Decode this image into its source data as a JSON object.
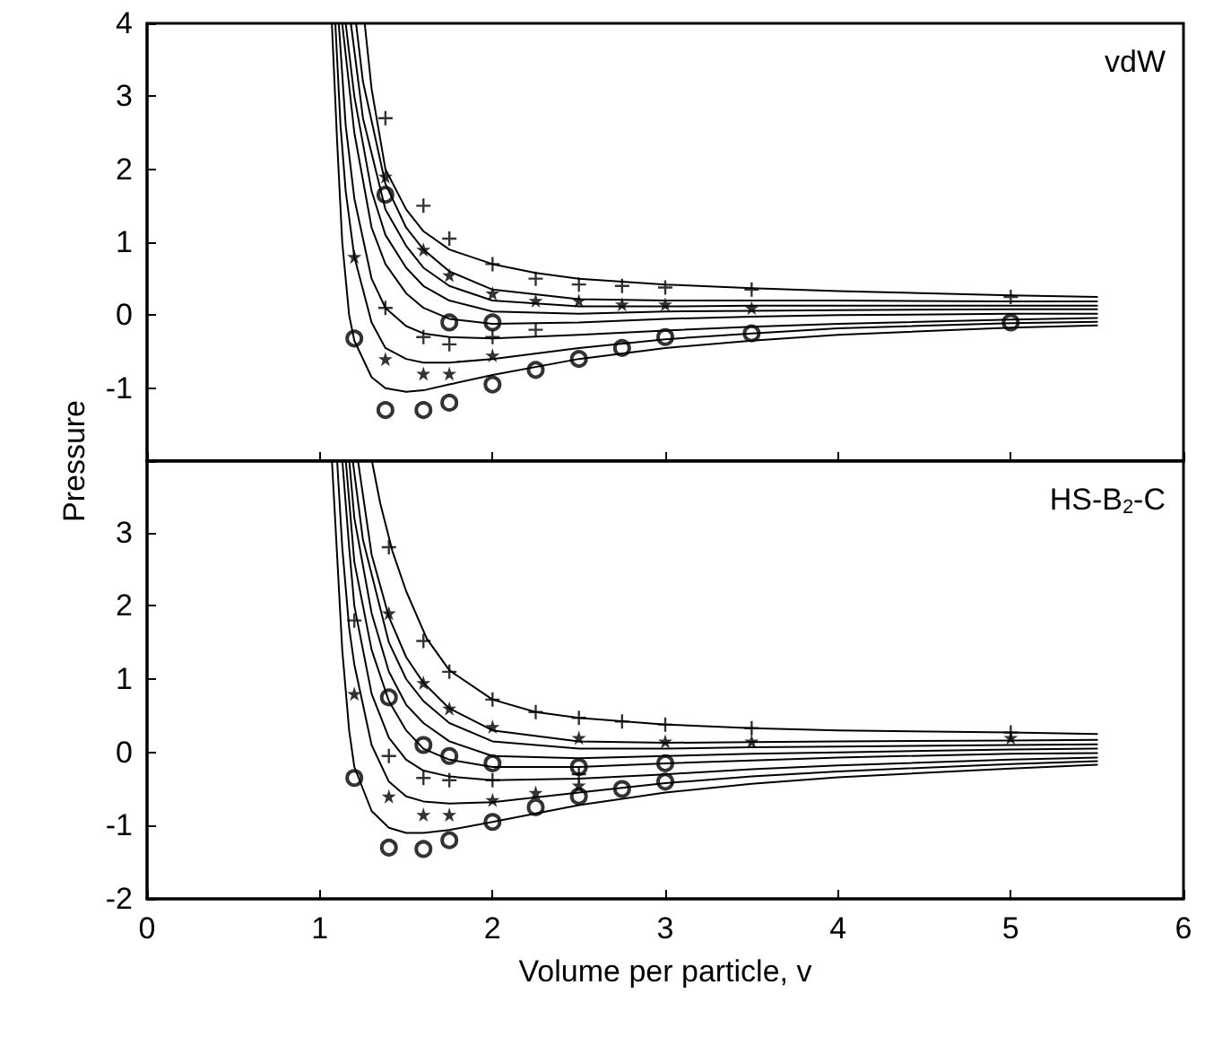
{
  "chart_data": [
    {
      "type": "line",
      "ylabel": "Pressure",
      "annotations": [
        "vdW"
      ],
      "xlim": [
        0,
        6
      ],
      "xticks": [
        0,
        1,
        2,
        3,
        4,
        5,
        6
      ],
      "ylim": [
        -2,
        4
      ],
      "yticks": [
        {
          "value": -2,
          "label": null
        },
        -1,
        0,
        1,
        2,
        3,
        4
      ],
      "tick_labels": "y",
      "grid": false,
      "line_style": "solid",
      "series": [
        {
          "color": "#000000",
          "marker": "none",
          "x": [
            1.26,
            1.3,
            1.38,
            1.5,
            1.6,
            1.75,
            2.0,
            2.25,
            2.5,
            3.0,
            3.5,
            4.0,
            5.0,
            5.5
          ],
          "values": [
            4,
            3.1,
            2.0,
            1.45,
            1.15,
            0.9,
            0.7,
            0.58,
            0.5,
            0.42,
            0.37,
            0.33,
            0.27,
            0.25
          ]
        },
        {
          "color": "#000000",
          "marker": "none",
          "x": [
            1.21,
            1.25,
            1.38,
            1.5,
            1.6,
            1.75,
            2.0,
            2.5,
            3.0,
            3.5,
            4.0,
            5.0,
            5.5
          ],
          "values": [
            4,
            3.2,
            1.8,
            1.2,
            0.9,
            0.6,
            0.35,
            0.22,
            0.2,
            0.2,
            0.2,
            0.19,
            0.19
          ]
        },
        {
          "color": "#000000",
          "marker": "none",
          "x": [
            1.18,
            1.25,
            1.38,
            1.5,
            1.6,
            1.75,
            2.0,
            2.5,
            3.0,
            3.5,
            4.0,
            5.0,
            5.5
          ],
          "values": [
            4,
            2.7,
            1.45,
            0.95,
            0.65,
            0.4,
            0.2,
            0.12,
            0.12,
            0.13,
            0.13,
            0.13,
            0.13
          ]
        },
        {
          "color": "#000000",
          "marker": "none",
          "x": [
            1.15,
            1.2,
            1.3,
            1.38,
            1.5,
            1.6,
            1.75,
            2.0,
            2.5,
            3.0,
            3.5,
            4.0,
            5.0,
            5.5
          ],
          "values": [
            4,
            3.0,
            1.7,
            1.1,
            0.65,
            0.4,
            0.2,
            0.05,
            0.02,
            0.05,
            0.06,
            0.07,
            0.08,
            0.08
          ]
        },
        {
          "color": "#000000",
          "marker": "none",
          "x": [
            1.13,
            1.2,
            1.3,
            1.38,
            1.5,
            1.6,
            1.75,
            2.0,
            2.5,
            3.0,
            3.5,
            4.0,
            5.0,
            5.5
          ],
          "values": [
            4,
            2.5,
            1.2,
            0.7,
            0.3,
            0.1,
            -0.05,
            -0.12,
            -0.1,
            -0.05,
            -0.02,
            0,
            0.02,
            0.02
          ]
        },
        {
          "color": "#000000",
          "marker": "none",
          "x": [
            1.11,
            1.15,
            1.2,
            1.3,
            1.38,
            1.5,
            1.6,
            1.75,
            2.0,
            2.5,
            3.0,
            3.5,
            4.0,
            5.0,
            5.5
          ],
          "values": [
            4,
            2.6,
            1.6,
            0.5,
            0.1,
            -0.15,
            -0.25,
            -0.3,
            -0.32,
            -0.27,
            -0.21,
            -0.16,
            -0.12,
            -0.06,
            -0.04
          ]
        },
        {
          "color": "#000000",
          "marker": "none",
          "x": [
            1.09,
            1.12,
            1.15,
            1.2,
            1.3,
            1.38,
            1.5,
            1.6,
            1.75,
            2.0,
            2.5,
            3.0,
            3.5,
            4.0,
            5.0,
            5.5
          ],
          "values": [
            4,
            2.6,
            1.7,
            0.8,
            -0.1,
            -0.45,
            -0.6,
            -0.65,
            -0.65,
            -0.6,
            -0.45,
            -0.33,
            -0.25,
            -0.18,
            -0.11,
            -0.09
          ]
        },
        {
          "color": "#000000",
          "marker": "none",
          "x": [
            1.07,
            1.1,
            1.13,
            1.17,
            1.2,
            1.3,
            1.38,
            1.5,
            1.6,
            1.75,
            2.0,
            2.5,
            3.0,
            3.5,
            4.0,
            5.0,
            5.5
          ],
          "values": [
            4,
            2.4,
            1.0,
            0,
            -0.35,
            -0.85,
            -1.0,
            -1.05,
            -1.03,
            -0.95,
            -0.82,
            -0.6,
            -0.45,
            -0.35,
            -0.27,
            -0.17,
            -0.14
          ]
        },
        {
          "type": "scatter",
          "color": "#000000",
          "marker": "circle",
          "x": [
            1.2,
            1.38,
            1.6,
            1.75,
            2.0,
            2.25,
            2.5,
            2.75,
            3.0,
            3.5,
            5.0,
            1.38,
            1.75,
            2.0
          ],
          "values": [
            -0.32,
            -1.3,
            -1.3,
            -1.2,
            -0.95,
            -0.75,
            -0.6,
            -0.45,
            -0.3,
            -0.25,
            -0.1,
            1.65,
            -0.1,
            -0.1
          ]
        },
        {
          "type": "scatter",
          "color": "#000000",
          "marker": "star",
          "x": [
            1.2,
            1.38,
            1.6,
            1.75,
            2.0,
            1.38,
            1.6,
            1.75,
            2.0,
            2.25,
            2.5,
            2.75,
            3.0,
            3.5
          ],
          "values": [
            0.8,
            -0.6,
            -0.8,
            -0.8,
            -0.55,
            1.9,
            0.9,
            0.55,
            0.3,
            0.2,
            0.2,
            0.15,
            0.15,
            0.1
          ]
        },
        {
          "type": "scatter",
          "color": "#000000",
          "marker": "cross",
          "x": [
            1.38,
            1.6,
            1.75,
            2.0,
            2.25,
            2.5,
            2.75,
            3.0,
            3.5,
            5.0,
            1.38,
            1.6,
            1.75,
            2.0,
            2.25
          ],
          "values": [
            2.7,
            1.5,
            1.05,
            0.7,
            0.5,
            0.42,
            0.4,
            0.38,
            0.35,
            0.25,
            0.1,
            -0.3,
            -0.4,
            -0.3,
            -0.2
          ]
        }
      ]
    },
    {
      "type": "line",
      "xlabel": "Volume per particle, v",
      "annotations": [
        "HS-B$_{2}$-C"
      ],
      "xlim": [
        0,
        6
      ],
      "xticks": [
        0,
        1,
        2,
        3,
        4,
        5,
        6
      ],
      "ylim": [
        -2,
        4
      ],
      "yticks": [
        -2,
        -1,
        0,
        1,
        2,
        3,
        {
          "value": 4,
          "label": null
        }
      ],
      "grid": false,
      "line_style": "solid",
      "series": [
        {
          "color": "#000000",
          "marker": "none",
          "x": [
            1.3,
            1.35,
            1.42,
            1.5,
            1.62,
            1.75,
            2.0,
            2.25,
            2.5,
            3.0,
            3.5,
            4.0,
            5.0,
            5.5
          ],
          "values": [
            4,
            3.4,
            2.75,
            2.2,
            1.55,
            1.12,
            0.72,
            0.55,
            0.47,
            0.38,
            0.33,
            0.3,
            0.27,
            0.25
          ]
        },
        {
          "color": "#000000",
          "marker": "none",
          "x": [
            1.22,
            1.3,
            1.4,
            1.5,
            1.6,
            1.75,
            2.0,
            2.5,
            3.0,
            3.5,
            4.0,
            5.0,
            5.5
          ],
          "values": [
            4,
            2.7,
            1.85,
            1.3,
            0.95,
            0.6,
            0.3,
            0.15,
            0.13,
            0.14,
            0.15,
            0.16,
            0.17
          ]
        },
        {
          "color": "#000000",
          "marker": "none",
          "x": [
            1.19,
            1.25,
            1.4,
            1.5,
            1.6,
            1.75,
            2.0,
            2.5,
            3.0,
            3.5,
            4.0,
            5.0,
            5.5
          ],
          "values": [
            4,
            2.9,
            1.5,
            1.0,
            0.7,
            0.4,
            0.15,
            0.05,
            0.05,
            0.07,
            0.08,
            0.1,
            0.11
          ]
        },
        {
          "color": "#000000",
          "marker": "none",
          "x": [
            1.17,
            1.2,
            1.3,
            1.4,
            1.5,
            1.6,
            1.75,
            2.0,
            2.5,
            3.0,
            3.5,
            4.0,
            5.0,
            5.5
          ],
          "values": [
            4,
            3.2,
            1.9,
            1.1,
            0.65,
            0.4,
            0.15,
            -0.05,
            -0.08,
            -0.05,
            -0.02,
            0,
            0.04,
            0.05
          ]
        },
        {
          "color": "#000000",
          "marker": "none",
          "x": [
            1.15,
            1.2,
            1.3,
            1.4,
            1.5,
            1.6,
            1.75,
            2.0,
            2.5,
            3.0,
            3.5,
            4.0,
            5.0,
            5.5
          ],
          "values": [
            4,
            2.6,
            1.4,
            0.7,
            0.3,
            0.05,
            -0.1,
            -0.2,
            -0.2,
            -0.15,
            -0.11,
            -0.07,
            -0.02,
            -0.01
          ]
        },
        {
          "color": "#000000",
          "marker": "none",
          "x": [
            1.13,
            1.17,
            1.2,
            1.3,
            1.4,
            1.5,
            1.6,
            1.75,
            2.0,
            2.5,
            3.0,
            3.5,
            4.0,
            5.0,
            5.5
          ],
          "values": [
            4,
            2.8,
            2.0,
            0.8,
            0.2,
            -0.1,
            -0.25,
            -0.33,
            -0.38,
            -0.36,
            -0.3,
            -0.23,
            -0.18,
            -0.1,
            -0.07
          ]
        },
        {
          "color": "#000000",
          "marker": "none",
          "x": [
            1.1,
            1.13,
            1.17,
            1.2,
            1.3,
            1.4,
            1.5,
            1.6,
            1.75,
            2.0,
            2.5,
            3.0,
            3.5,
            4.0,
            5.0,
            5.5
          ],
          "values": [
            4,
            2.8,
            1.7,
            1.2,
            0.1,
            -0.4,
            -0.6,
            -0.67,
            -0.7,
            -0.68,
            -0.55,
            -0.42,
            -0.33,
            -0.26,
            -0.16,
            -0.12
          ]
        },
        {
          "color": "#000000",
          "marker": "none",
          "x": [
            1.07,
            1.1,
            1.13,
            1.17,
            1.2,
            1.3,
            1.4,
            1.5,
            1.6,
            1.75,
            2.0,
            2.5,
            3.0,
            3.5,
            4.0,
            5.0,
            5.5
          ],
          "values": [
            4,
            2.7,
            1.4,
            0.3,
            -0.2,
            -0.8,
            -1.03,
            -1.1,
            -1.1,
            -1.06,
            -0.95,
            -0.72,
            -0.55,
            -0.43,
            -0.34,
            -0.22,
            -0.17
          ]
        },
        {
          "type": "scatter",
          "color": "#000000",
          "marker": "circle",
          "x": [
            1.2,
            1.4,
            1.6,
            1.75,
            2.0,
            2.25,
            2.5,
            2.75,
            3.0,
            1.4,
            1.6,
            1.75,
            2.0,
            2.5,
            3.0
          ],
          "values": [
            -0.35,
            -1.3,
            -1.32,
            -1.2,
            -0.95,
            -0.75,
            -0.6,
            -0.5,
            -0.4,
            0.75,
            0.1,
            -0.05,
            -0.15,
            -0.2,
            -0.15
          ]
        },
        {
          "type": "scatter",
          "color": "#000000",
          "marker": "star",
          "x": [
            1.2,
            1.4,
            1.6,
            1.75,
            2.0,
            2.25,
            2.5,
            1.4,
            1.6,
            1.75,
            2.0,
            2.5,
            3.0,
            3.5,
            5.0
          ],
          "values": [
            0.8,
            -0.6,
            -0.85,
            -0.85,
            -0.65,
            -0.55,
            -0.45,
            1.9,
            0.95,
            0.6,
            0.35,
            0.2,
            0.15,
            0.15,
            0.2
          ]
        },
        {
          "type": "scatter",
          "color": "#000000",
          "marker": "cross",
          "x": [
            1.2,
            1.4,
            1.6,
            1.75,
            2.0,
            2.25,
            2.5,
            2.75,
            3.0,
            3.5,
            5.0,
            1.4,
            1.6,
            1.75,
            2.0,
            2.5
          ],
          "values": [
            1.8,
            2.8,
            1.52,
            1.1,
            0.72,
            0.55,
            0.47,
            0.42,
            0.38,
            0.33,
            0.27,
            -0.05,
            -0.35,
            -0.38,
            -0.38,
            -0.3
          ]
        }
      ]
    }
  ]
}
